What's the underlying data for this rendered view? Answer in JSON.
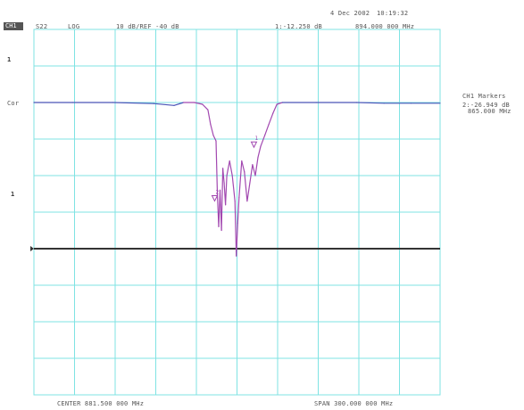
{
  "header": {
    "date": "4 Dec 2002",
    "time": "10:19:32",
    "channel_label": "CH1",
    "param": "S22",
    "format": "LOG",
    "scale_ref": "10 dB/REF -40 dB",
    "marker_readout": "1:-12.250 dB",
    "marker_freq": "894.000 000 MHz"
  },
  "side_labels": {
    "left_marker": "1",
    "left_cor": "Cor",
    "left_small": "1"
  },
  "markers_panel": {
    "title": "CH1 Markers",
    "line1": "2:-26.949 dB",
    "line2": "865.000 MHz"
  },
  "footer": {
    "center": "CENTER 881.500 000 MHz",
    "span": "SPAN 300.000 000 MHz"
  },
  "colors": {
    "grid": "#7fe3e3",
    "trace_normal": "#4a54b8",
    "trace_notch": "#a248b0",
    "reference_line": "#333333"
  },
  "chart_data": {
    "type": "line",
    "title": "",
    "xlabel": "",
    "ylabel": "",
    "x_unit": "MHz",
    "y_unit": "dB",
    "xlim": [
      731.5,
      1031.5
    ],
    "ylim": [
      -80,
      20
    ],
    "reference_dB": -40,
    "grid": true,
    "series": [
      {
        "values": [
          [
            731.5,
            0.0
          ],
          [
            760,
            0.0
          ],
          [
            790,
            0.0
          ],
          [
            820,
            -0.3
          ],
          [
            835,
            -0.8
          ],
          [
            842,
            0.0
          ],
          [
            850,
            0.0
          ],
          [
            856,
            -0.5
          ],
          [
            860,
            -2.0
          ],
          [
            862,
            -6.0
          ],
          [
            864,
            -9.0
          ],
          [
            866,
            -10.5
          ],
          [
            867,
            -25.0
          ],
          [
            868,
            -34.0
          ],
          [
            869,
            -24.0
          ],
          [
            870,
            -35.0
          ],
          [
            871,
            -18.0
          ],
          [
            872,
            -22.0
          ],
          [
            873,
            -28.0
          ],
          [
            874,
            -20.0
          ],
          [
            876,
            -16.0
          ],
          [
            878,
            -20.0
          ],
          [
            880,
            -27.0
          ],
          [
            881,
            -42.0
          ],
          [
            882,
            -33.0
          ],
          [
            883,
            -26.0
          ],
          [
            885,
            -16.0
          ],
          [
            887,
            -19.0
          ],
          [
            889,
            -27.0
          ],
          [
            891,
            -22.0
          ],
          [
            893,
            -17.0
          ],
          [
            895,
            -20.0
          ],
          [
            897,
            -15.0
          ],
          [
            899,
            -12.0
          ],
          [
            902,
            -9.0
          ],
          [
            905,
            -6.0
          ],
          [
            908,
            -3.0
          ],
          [
            911,
            -0.5
          ],
          [
            915,
            0.0
          ],
          [
            940,
            0.0
          ],
          [
            970,
            0.0
          ],
          [
            990,
            -0.2
          ],
          [
            1010,
            -0.2
          ],
          [
            1031.5,
            -0.2
          ]
        ]
      }
    ],
    "markers": [
      {
        "label": "1",
        "x": 894.0,
        "y": -12.25
      },
      {
        "label": "2",
        "x": 865.0,
        "y": -26.949
      }
    ]
  }
}
